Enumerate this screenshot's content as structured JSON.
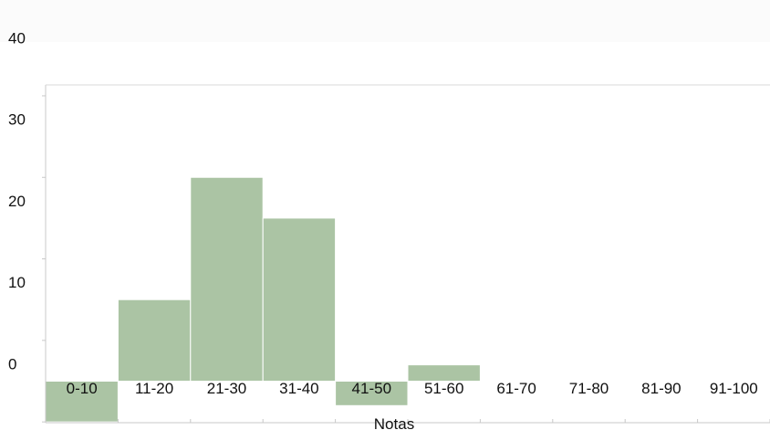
{
  "chart_data": {
    "type": "bar",
    "xlabel": "Notas",
    "ylabel": "",
    "categories": [
      "0-10",
      "11-20",
      "21-30",
      "31-40",
      "41-50",
      "51-60",
      "61-70",
      "71-80",
      "81-90",
      "91-100"
    ],
    "values": [
      -5,
      10,
      25,
      20,
      -3,
      2,
      0,
      0,
      0,
      0
    ],
    "y_ticks": [
      0,
      10,
      20,
      30,
      40
    ],
    "ylim": [
      -8,
      40
    ],
    "bar_color": "#abc4a4",
    "grid": false
  }
}
